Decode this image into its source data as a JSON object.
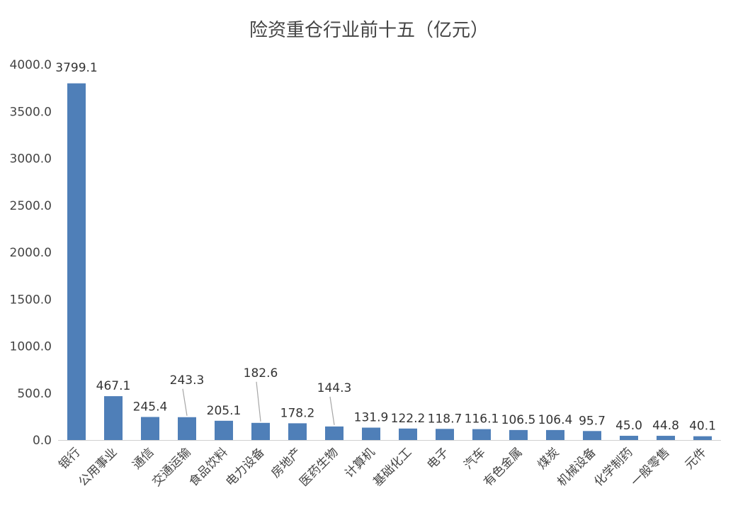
{
  "chart_data": {
    "type": "bar",
    "title": "险资重仓行业前十五（亿元）",
    "xlabel": "",
    "ylabel": "",
    "ylim": [
      0,
      4000
    ],
    "yticks": [
      "0.0",
      "500.0",
      "1000.0",
      "1500.0",
      "2000.0",
      "2500.0",
      "3000.0",
      "3500.0",
      "4000.0"
    ],
    "categories": [
      "银行",
      "公用事业",
      "通信",
      "交通运输",
      "食品饮料",
      "电力设备",
      "房地产",
      "医药生物",
      "计算机",
      "基础化工",
      "电子",
      "汽车",
      "有色金属",
      "煤炭",
      "机械设备",
      "化学制药",
      "一般零售",
      "元件"
    ],
    "values": [
      3799.1,
      467.1,
      245.4,
      243.3,
      205.1,
      182.6,
      178.2,
      144.3,
      131.9,
      122.2,
      118.7,
      116.1,
      106.5,
      106.4,
      95.7,
      45.0,
      44.8,
      40.1
    ],
    "labels": [
      "3799.1",
      "467.1",
      "245.4",
      "243.3",
      "205.1",
      "182.6",
      "178.2",
      "144.3",
      "131.9",
      "122.2",
      "118.7",
      "116.1",
      "106.5",
      "106.4",
      "95.7",
      "45.0",
      "44.8",
      "40.1"
    ],
    "bar_color": "#4f7fb8",
    "grid": false
  }
}
